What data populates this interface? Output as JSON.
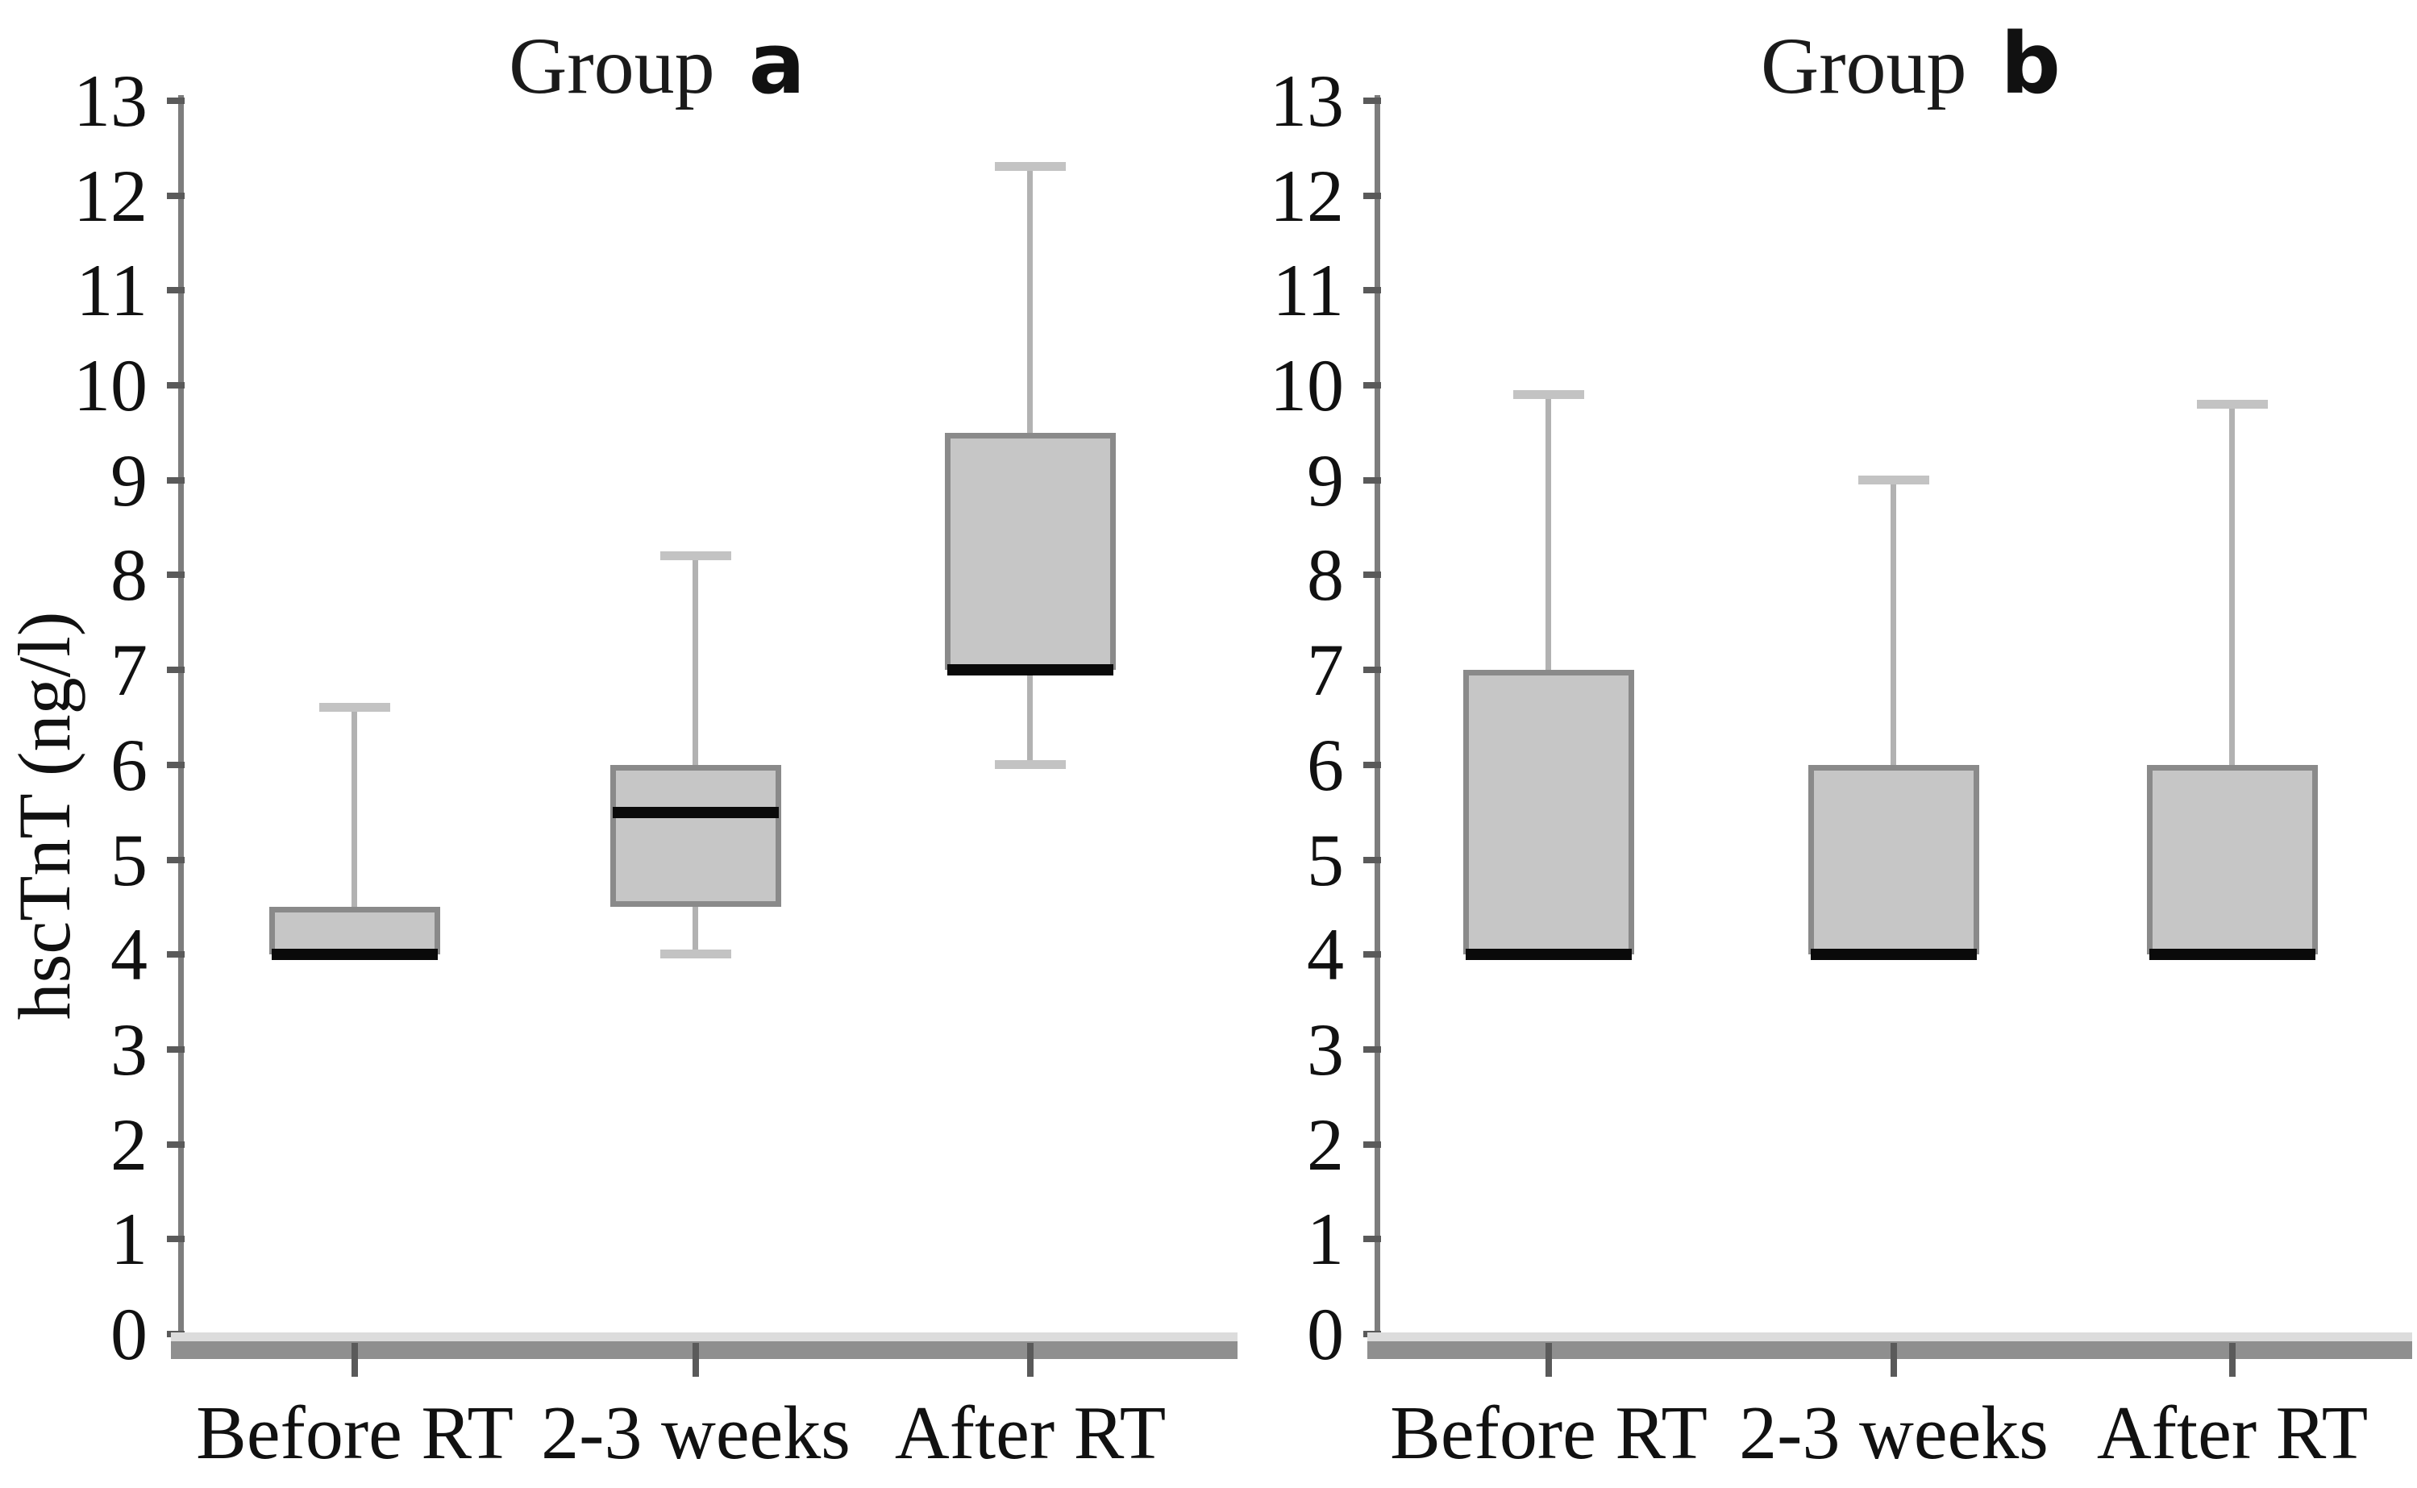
{
  "figure_title": "",
  "colors": {
    "box_fill": "#c6c6c6",
    "box_border": "#8a8a8a",
    "median": "#0a0a0a",
    "whisker_stem": "#b2b2b2",
    "whisker_cap": "#c3c3c3",
    "y_axis": "#7d7d7d",
    "x_axis_dark": "#8f8f8f",
    "x_axis_light": "#dcdcdc",
    "tick_mark": "#5a5a5a",
    "text": "#111111"
  },
  "chart_data": [
    {
      "type": "box",
      "title_prefix": "Group",
      "title_letter": "a",
      "ylabel": "hscTnT (ng/l)",
      "ylim": [
        0,
        13
      ],
      "yticks": [
        0,
        1,
        2,
        3,
        4,
        5,
        6,
        7,
        8,
        9,
        10,
        11,
        12,
        13
      ],
      "grid": false,
      "categories": [
        "Before RT",
        "2-3 weeks",
        "After RT"
      ],
      "series": [
        {
          "category": "Before RT",
          "median": 4.0,
          "q1": 4.0,
          "q3": 4.5,
          "whisker_low": null,
          "whisker_high": 6.6
        },
        {
          "category": "2-3 weeks",
          "median": 5.5,
          "q1": 4.5,
          "q3": 6.0,
          "whisker_low": 4.0,
          "whisker_high": 8.2
        },
        {
          "category": "After RT",
          "median": 7.0,
          "q1": 7.0,
          "q3": 9.5,
          "whisker_low": 6.0,
          "whisker_high": 12.3
        }
      ]
    },
    {
      "type": "box",
      "title_prefix": "Group",
      "title_letter": "b",
      "ylabel": "",
      "ylim": [
        0,
        13
      ],
      "yticks": [
        0,
        1,
        2,
        3,
        4,
        5,
        6,
        7,
        8,
        9,
        10,
        11,
        12,
        13
      ],
      "grid": false,
      "categories": [
        "Before RT",
        "2-3 weeks",
        "After RT"
      ],
      "series": [
        {
          "category": "Before RT",
          "median": 4.0,
          "q1": 4.0,
          "q3": 7.0,
          "whisker_low": null,
          "whisker_high": 9.9
        },
        {
          "category": "2-3 weeks",
          "median": 4.0,
          "q1": 4.0,
          "q3": 6.0,
          "whisker_low": null,
          "whisker_high": 9.0
        },
        {
          "category": "After RT",
          "median": 4.0,
          "q1": 4.0,
          "q3": 6.0,
          "whisker_low": null,
          "whisker_high": 9.8
        }
      ]
    }
  ]
}
